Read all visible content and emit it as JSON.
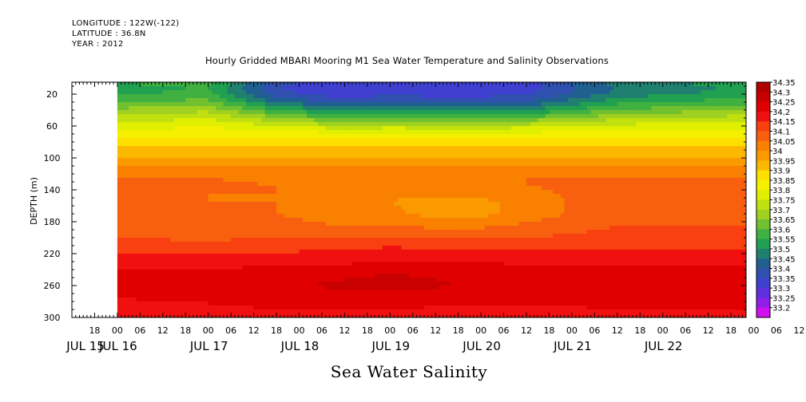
{
  "header": {
    "longitude": "LONGITUDE : 122W(-122)",
    "latitude": "LATITUDE : 36.8N",
    "year": "YEAR : 2012"
  },
  "chart_data": {
    "type": "heatmap",
    "title": "Hourly Gridded MBARI Mooring M1 Sea Water Temperature and Salinity Observations",
    "xlabel": "Sea Water Salinity",
    "ylabel": "DEPTH (m)",
    "x_axis": {
      "hour_ticks": [
        "18",
        "00",
        "06",
        "12",
        "18",
        "00",
        "06",
        "12",
        "18",
        "00",
        "06",
        "12",
        "18",
        "00",
        "06",
        "12",
        "18",
        "00",
        "06",
        "12",
        "18",
        "00",
        "06",
        "12",
        "18",
        "00",
        "06",
        "12",
        "18",
        "00",
        "06",
        "12",
        "18",
        "00",
        "06",
        "12"
      ],
      "day_labels": [
        "JUL 15",
        "JUL 16",
        "JUL 17",
        "JUL 18",
        "JUL 19",
        "JUL 20",
        "JUL 21",
        "JUL 22"
      ],
      "range": [
        "2012-07-15 12:00",
        "2012-07-22 22:00"
      ],
      "data_start": "2012-07-16 00:00"
    },
    "y_axis": {
      "ticks": [
        20,
        60,
        100,
        140,
        180,
        220,
        260,
        300
      ],
      "range": [
        5,
        300
      ],
      "inverted": true
    },
    "colorbar": {
      "levels": [
        34.35,
        34.3,
        34.25,
        34.2,
        34.15,
        34.1,
        34.05,
        34,
        33.95,
        33.9,
        33.85,
        33.8,
        33.75,
        33.7,
        33.65,
        33.6,
        33.55,
        33.5,
        33.45,
        33.4,
        33.35,
        33.3,
        33.25,
        33.2
      ],
      "colors": [
        "#b00000",
        "#c80000",
        "#e00000",
        "#f01010",
        "#f84010",
        "#f86010",
        "#fa8000",
        "#fb9a00",
        "#fcb800",
        "#fde000",
        "#f4f000",
        "#e0ee00",
        "#c0e010",
        "#a0d020",
        "#70c030",
        "#40b040",
        "#20a050",
        "#208070",
        "#206090",
        "#3050b0",
        "#4040d0",
        "#6030e0",
        "#9020e8",
        "#d010f0"
      ],
      "label_values": [
        "34.35",
        "34.3",
        "34.25",
        "34.2",
        "34.15",
        "34.1",
        "34.05",
        "34",
        "33.95",
        "33.9",
        "33.85",
        "33.8",
        "33.75",
        "33.7",
        "33.65",
        "33.6",
        "33.55",
        "33.5",
        "33.45",
        "33.4",
        "33.35",
        "33.3",
        "33.25",
        "33.2"
      ]
    },
    "profiles": {
      "depths": [
        5,
        15,
        25,
        35,
        45,
        55,
        65,
        75,
        85,
        95,
        105,
        115,
        125,
        135,
        145,
        155,
        170,
        185,
        200,
        215,
        230,
        245,
        260,
        275,
        290,
        300
      ],
      "columns": [
        {
          "date": "2012-07-16 00:00",
          "salinity": [
            33.6,
            33.58,
            33.62,
            33.68,
            33.75,
            33.8,
            33.85,
            33.9,
            33.94,
            33.98,
            34.02,
            34.06,
            34.1,
            34.12,
            34.13,
            34.13,
            34.13,
            34.14,
            34.15,
            34.18,
            34.22,
            34.26,
            34.27,
            34.25,
            34.24,
            34.24
          ]
        },
        {
          "date": "2012-07-17 00:00",
          "salinity": [
            33.62,
            33.6,
            33.64,
            33.7,
            33.77,
            33.82,
            33.87,
            33.91,
            33.95,
            33.99,
            34.03,
            34.07,
            34.1,
            34.11,
            34.1,
            34.1,
            34.11,
            34.13,
            34.14,
            34.18,
            34.22,
            34.27,
            34.28,
            34.26,
            34.24,
            34.24
          ]
        },
        {
          "date": "2012-07-17 18:00",
          "salinity": [
            33.42,
            33.4,
            33.45,
            33.55,
            33.66,
            33.76,
            33.85,
            33.91,
            33.95,
            33.99,
            34.03,
            34.07,
            34.09,
            34.1,
            34.1,
            34.1,
            34.1,
            34.13,
            34.15,
            34.19,
            34.23,
            34.28,
            34.29,
            34.27,
            34.25,
            34.25
          ]
        },
        {
          "date": "2012-07-18 12:00",
          "salinity": [
            33.36,
            33.35,
            33.4,
            33.48,
            33.58,
            33.7,
            33.82,
            33.9,
            33.95,
            33.99,
            34.03,
            34.07,
            34.1,
            34.1,
            34.08,
            34.06,
            34.05,
            34.1,
            34.15,
            34.2,
            34.24,
            34.29,
            34.31,
            34.28,
            34.25,
            34.25
          ]
        },
        {
          "date": "2012-07-19 00:00",
          "salinity": [
            33.38,
            33.37,
            33.42,
            33.5,
            33.6,
            33.72,
            33.83,
            33.9,
            33.95,
            33.99,
            34.03,
            34.07,
            34.1,
            34.1,
            34.06,
            34.05,
            34.06,
            34.1,
            34.16,
            34.21,
            34.25,
            34.3,
            34.32,
            34.28,
            34.25,
            34.25
          ]
        },
        {
          "date": "2012-07-19 18:00",
          "salinity": [
            33.36,
            33.36,
            33.4,
            33.48,
            33.58,
            33.7,
            33.82,
            33.9,
            33.95,
            33.99,
            34.03,
            34.07,
            34.1,
            34.1,
            34.06,
            34.02,
            34.02,
            34.08,
            34.14,
            34.2,
            34.25,
            34.29,
            34.3,
            34.27,
            34.24,
            34.24
          ]
        },
        {
          "date": "2012-07-20 12:00",
          "salinity": [
            33.38,
            33.38,
            33.42,
            33.5,
            33.6,
            33.72,
            33.83,
            33.9,
            33.95,
            33.99,
            34.03,
            34.07,
            34.1,
            34.1,
            34.08,
            34.07,
            34.07,
            34.11,
            34.15,
            34.2,
            34.24,
            34.28,
            34.29,
            34.26,
            34.24,
            34.24
          ]
        },
        {
          "date": "2012-07-21 12:00",
          "salinity": [
            33.52,
            33.5,
            33.55,
            33.62,
            33.7,
            33.78,
            33.85,
            33.9,
            33.94,
            33.98,
            34.02,
            34.06,
            34.1,
            34.12,
            34.14,
            34.14,
            34.14,
            34.15,
            34.17,
            34.2,
            34.24,
            34.28,
            34.29,
            34.27,
            34.25,
            34.25
          ]
        },
        {
          "date": "2012-07-22 22:00",
          "salinity": [
            33.58,
            33.56,
            33.6,
            33.66,
            33.74,
            33.8,
            33.86,
            33.91,
            33.95,
            33.99,
            34.03,
            34.07,
            34.1,
            34.11,
            34.12,
            34.12,
            34.13,
            34.15,
            34.17,
            34.2,
            34.24,
            34.28,
            34.3,
            34.27,
            34.25,
            34.25
          ]
        }
      ]
    }
  }
}
